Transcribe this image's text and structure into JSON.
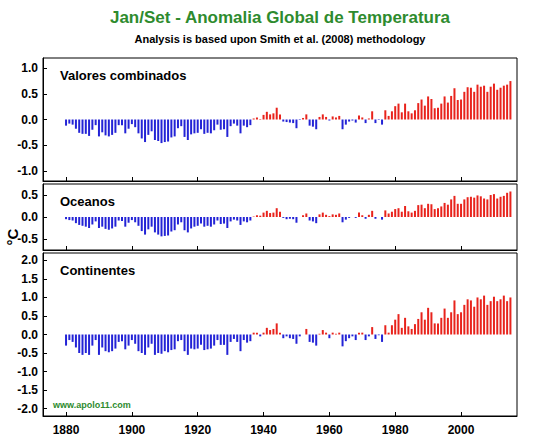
{
  "title": "Jan/Set - Anomalia Global de Temperatura",
  "subtitle": "Analysis is based upon Smith et al. (2008) methodology",
  "ylabel": "°C",
  "source": "www.apolo11.com",
  "chart_data": [
    {
      "type": "bar",
      "title": "Valores combinados",
      "x": [
        1880,
        1881,
        1882,
        1883,
        1884,
        1885,
        1886,
        1887,
        1888,
        1889,
        1890,
        1891,
        1892,
        1893,
        1894,
        1895,
        1896,
        1897,
        1898,
        1899,
        1900,
        1901,
        1902,
        1903,
        1904,
        1905,
        1906,
        1907,
        1908,
        1909,
        1910,
        1911,
        1912,
        1913,
        1914,
        1915,
        1916,
        1917,
        1918,
        1919,
        1920,
        1921,
        1922,
        1923,
        1924,
        1925,
        1926,
        1927,
        1928,
        1929,
        1930,
        1931,
        1932,
        1933,
        1934,
        1935,
        1936,
        1937,
        1938,
        1939,
        1940,
        1941,
        1942,
        1943,
        1944,
        1945,
        1946,
        1947,
        1948,
        1949,
        1950,
        1951,
        1952,
        1953,
        1954,
        1955,
        1956,
        1957,
        1958,
        1959,
        1960,
        1961,
        1962,
        1963,
        1964,
        1965,
        1966,
        1967,
        1968,
        1969,
        1970,
        1971,
        1972,
        1973,
        1974,
        1975,
        1976,
        1977,
        1978,
        1979,
        1980,
        1981,
        1982,
        1983,
        1984,
        1985,
        1986,
        1987,
        1988,
        1989,
        1990,
        1991,
        1992,
        1993,
        1994,
        1995,
        1996,
        1997,
        1998,
        1999,
        2000,
        2001,
        2002,
        2003,
        2004,
        2005,
        2006,
        2007,
        2008,
        2009,
        2010,
        2011,
        2012,
        2013,
        2014,
        2015
      ],
      "values": [
        -0.12,
        -0.08,
        -0.1,
        -0.18,
        -0.26,
        -0.28,
        -0.28,
        -0.32,
        -0.2,
        -0.11,
        -0.33,
        -0.25,
        -0.31,
        -0.33,
        -0.3,
        -0.26,
        -0.11,
        -0.11,
        -0.27,
        -0.18,
        -0.09,
        -0.15,
        -0.27,
        -0.37,
        -0.44,
        -0.3,
        -0.23,
        -0.4,
        -0.42,
        -0.46,
        -0.44,
        -0.43,
        -0.35,
        -0.33,
        -0.17,
        -0.13,
        -0.34,
        -0.4,
        -0.29,
        -0.27,
        -0.26,
        -0.19,
        -0.28,
        -0.26,
        -0.27,
        -0.21,
        -0.1,
        -0.2,
        -0.19,
        -0.34,
        -0.13,
        -0.08,
        -0.12,
        -0.27,
        -0.12,
        -0.15,
        -0.11,
        0.02,
        0.04,
        0.01,
        0.09,
        0.15,
        0.1,
        0.12,
        0.23,
        0.1,
        -0.04,
        -0.05,
        -0.06,
        -0.07,
        -0.17,
        -0.01,
        0.03,
        0.1,
        -0.12,
        -0.14,
        -0.19,
        0.05,
        0.1,
        0.05,
        -0.02,
        0.06,
        0.04,
        0.07,
        -0.19,
        -0.1,
        -0.04,
        -0.02,
        -0.06,
        0.08,
        0.04,
        -0.07,
        0.02,
        0.16,
        -0.07,
        -0.01,
        -0.1,
        0.18,
        0.07,
        0.16,
        0.26,
        0.31,
        0.14,
        0.31,
        0.16,
        0.12,
        0.18,
        0.32,
        0.39,
        0.27,
        0.45,
        0.4,
        0.22,
        0.23,
        0.31,
        0.45,
        0.33,
        0.46,
        0.61,
        0.38,
        0.39,
        0.54,
        0.63,
        0.62,
        0.54,
        0.68,
        0.64,
        0.66,
        0.54,
        0.64,
        0.7,
        0.58,
        0.62,
        0.66,
        0.68,
        0.75
      ],
      "color": {
        "positive": "#e8231c",
        "negative": "#2323d6"
      },
      "xlim": [
        1873,
        2017
      ],
      "xticks": [
        1880,
        1900,
        1920,
        1940,
        1960,
        1980,
        2000
      ],
      "ylim": [
        -1.2,
        1.2
      ],
      "yticks": [
        {
          "value": -1.0,
          "label": "-1.0"
        },
        {
          "value": -0.5,
          "label": "-0.5"
        },
        {
          "value": 0,
          "label": "0.0"
        },
        {
          "value": 0.5,
          "label": "0.5"
        },
        {
          "value": 1.0,
          "label": "1.0"
        }
      ],
      "grid": false,
      "tick_labels": "y"
    },
    {
      "type": "bar",
      "title": "Oceanos",
      "x": [
        1880,
        1881,
        1882,
        1883,
        1884,
        1885,
        1886,
        1887,
        1888,
        1889,
        1890,
        1891,
        1892,
        1893,
        1894,
        1895,
        1896,
        1897,
        1898,
        1899,
        1900,
        1901,
        1902,
        1903,
        1904,
        1905,
        1906,
        1907,
        1908,
        1909,
        1910,
        1911,
        1912,
        1913,
        1914,
        1915,
        1916,
        1917,
        1918,
        1919,
        1920,
        1921,
        1922,
        1923,
        1924,
        1925,
        1926,
        1927,
        1928,
        1929,
        1930,
        1931,
        1932,
        1933,
        1934,
        1935,
        1936,
        1937,
        1938,
        1939,
        1940,
        1941,
        1942,
        1943,
        1944,
        1945,
        1946,
        1947,
        1948,
        1949,
        1950,
        1951,
        1952,
        1953,
        1954,
        1955,
        1956,
        1957,
        1958,
        1959,
        1960,
        1961,
        1962,
        1963,
        1964,
        1965,
        1966,
        1967,
        1968,
        1969,
        1970,
        1971,
        1972,
        1973,
        1974,
        1975,
        1976,
        1977,
        1978,
        1979,
        1980,
        1981,
        1982,
        1983,
        1984,
        1985,
        1986,
        1987,
        1988,
        1989,
        1990,
        1991,
        1992,
        1993,
        1994,
        1995,
        1996,
        1997,
        1998,
        1999,
        2000,
        2001,
        2002,
        2003,
        2004,
        2005,
        2006,
        2007,
        2008,
        2009,
        2010,
        2011,
        2012,
        2013,
        2014,
        2015
      ],
      "values": [
        -0.05,
        -0.07,
        -0.08,
        -0.14,
        -0.18,
        -0.2,
        -0.22,
        -0.25,
        -0.17,
        -0.1,
        -0.25,
        -0.22,
        -0.27,
        -0.29,
        -0.26,
        -0.22,
        -0.08,
        -0.09,
        -0.22,
        -0.13,
        -0.07,
        -0.12,
        -0.2,
        -0.32,
        -0.4,
        -0.28,
        -0.22,
        -0.35,
        -0.4,
        -0.44,
        -0.43,
        -0.42,
        -0.33,
        -0.3,
        -0.17,
        -0.12,
        -0.3,
        -0.35,
        -0.26,
        -0.22,
        -0.2,
        -0.15,
        -0.22,
        -0.2,
        -0.22,
        -0.17,
        -0.08,
        -0.16,
        -0.15,
        -0.25,
        -0.1,
        -0.06,
        -0.08,
        -0.18,
        -0.1,
        -0.12,
        -0.08,
        0.01,
        0.04,
        0.03,
        0.1,
        0.14,
        0.09,
        0.1,
        0.2,
        0.12,
        -0.02,
        -0.05,
        -0.04,
        -0.05,
        -0.13,
        0.0,
        0.04,
        0.08,
        -0.08,
        -0.1,
        -0.14,
        0.06,
        0.1,
        0.05,
        0.02,
        0.06,
        0.05,
        0.08,
        -0.12,
        -0.06,
        -0.02,
        0.0,
        -0.02,
        0.1,
        0.04,
        -0.04,
        0.05,
        0.14,
        -0.04,
        0.0,
        -0.06,
        0.15,
        0.08,
        0.12,
        0.18,
        0.2,
        0.12,
        0.25,
        0.13,
        0.1,
        0.14,
        0.27,
        0.28,
        0.2,
        0.3,
        0.29,
        0.18,
        0.2,
        0.24,
        0.32,
        0.28,
        0.4,
        0.48,
        0.3,
        0.3,
        0.4,
        0.45,
        0.46,
        0.44,
        0.49,
        0.47,
        0.42,
        0.4,
        0.5,
        0.52,
        0.42,
        0.46,
        0.48,
        0.55,
        0.58
      ],
      "color": {
        "positive": "#e8231c",
        "negative": "#2323d6"
      },
      "xlim": [
        1873,
        2017
      ],
      "xticks": [
        1880,
        1900,
        1920,
        1940,
        1960,
        1980,
        2000
      ],
      "ylim": [
        -0.75,
        0.75
      ],
      "yticks": [
        {
          "value": -0.5,
          "label": "-0.5"
        },
        {
          "value": 0,
          "label": "0.0"
        },
        {
          "value": 0.5,
          "label": "0.5"
        }
      ],
      "grid": false,
      "tick_labels": "y"
    },
    {
      "type": "bar",
      "title": "Continentes",
      "x": [
        1880,
        1881,
        1882,
        1883,
        1884,
        1885,
        1886,
        1887,
        1888,
        1889,
        1890,
        1891,
        1892,
        1893,
        1894,
        1895,
        1896,
        1897,
        1898,
        1899,
        1900,
        1901,
        1902,
        1903,
        1904,
        1905,
        1906,
        1907,
        1908,
        1909,
        1910,
        1911,
        1912,
        1913,
        1914,
        1915,
        1916,
        1917,
        1918,
        1919,
        1920,
        1921,
        1922,
        1923,
        1924,
        1925,
        1926,
        1927,
        1928,
        1929,
        1930,
        1931,
        1932,
        1933,
        1934,
        1935,
        1936,
        1937,
        1938,
        1939,
        1940,
        1941,
        1942,
        1943,
        1944,
        1945,
        1946,
        1947,
        1948,
        1949,
        1950,
        1951,
        1952,
        1953,
        1954,
        1955,
        1956,
        1957,
        1958,
        1959,
        1960,
        1961,
        1962,
        1963,
        1964,
        1965,
        1966,
        1967,
        1968,
        1969,
        1970,
        1971,
        1972,
        1973,
        1974,
        1975,
        1976,
        1977,
        1978,
        1979,
        1980,
        1981,
        1982,
        1983,
        1984,
        1985,
        1986,
        1987,
        1988,
        1989,
        1990,
        1991,
        1992,
        1993,
        1994,
        1995,
        1996,
        1997,
        1998,
        1999,
        2000,
        2001,
        2002,
        2003,
        2004,
        2005,
        2006,
        2007,
        2008,
        2009,
        2010,
        2011,
        2012,
        2013,
        2014,
        2015
      ],
      "values": [
        -0.3,
        -0.15,
        -0.2,
        -0.35,
        -0.5,
        -0.55,
        -0.5,
        -0.55,
        -0.3,
        -0.15,
        -0.55,
        -0.35,
        -0.45,
        -0.48,
        -0.45,
        -0.38,
        -0.2,
        -0.18,
        -0.4,
        -0.3,
        -0.15,
        -0.25,
        -0.45,
        -0.5,
        -0.55,
        -0.35,
        -0.25,
        -0.55,
        -0.5,
        -0.52,
        -0.45,
        -0.48,
        -0.42,
        -0.4,
        -0.18,
        -0.15,
        -0.45,
        -0.55,
        -0.38,
        -0.4,
        -0.38,
        -0.28,
        -0.42,
        -0.4,
        -0.38,
        -0.3,
        -0.15,
        -0.28,
        -0.28,
        -0.55,
        -0.2,
        -0.12,
        -0.2,
        -0.45,
        -0.15,
        -0.22,
        -0.18,
        0.05,
        0.05,
        -0.05,
        0.05,
        0.18,
        0.12,
        0.15,
        0.3,
        0.05,
        -0.1,
        -0.05,
        -0.1,
        -0.12,
        -0.25,
        -0.05,
        0.0,
        0.15,
        -0.2,
        -0.22,
        -0.3,
        0.02,
        0.12,
        0.05,
        -0.1,
        0.05,
        0.02,
        0.05,
        -0.32,
        -0.18,
        -0.1,
        -0.05,
        -0.15,
        0.05,
        0.05,
        -0.15,
        -0.05,
        0.2,
        -0.12,
        -0.02,
        -0.2,
        0.25,
        0.05,
        0.25,
        0.4,
        0.55,
        0.18,
        0.45,
        0.22,
        0.15,
        0.28,
        0.42,
        0.6,
        0.4,
        0.72,
        0.6,
        0.3,
        0.3,
        0.45,
        0.7,
        0.45,
        0.6,
        0.92,
        0.55,
        0.6,
        0.8,
        0.95,
        0.92,
        0.75,
        1.0,
        0.95,
        1.05,
        0.8,
        0.9,
        1.02,
        0.9,
        0.95,
        1.05,
        0.9,
        1.0
      ],
      "color": {
        "positive": "#e8231c",
        "negative": "#2323d6"
      },
      "xlim": [
        1873,
        2017
      ],
      "xticks": [
        1880,
        1900,
        1920,
        1940,
        1960,
        1980,
        2000
      ],
      "ylim": [
        -2.2,
        2.2
      ],
      "yticks": [
        {
          "value": -2.0,
          "label": "-2.0"
        },
        {
          "value": -1.5,
          "label": "-1.5"
        },
        {
          "value": -1.0,
          "label": "-1.0"
        },
        {
          "value": -0.5,
          "label": "-0.5"
        },
        {
          "value": 0,
          "label": "0.0"
        },
        {
          "value": 0.5,
          "label": "0.5"
        },
        {
          "value": 1.0,
          "label": "1.0"
        },
        {
          "value": 1.5,
          "label": "1.5"
        },
        {
          "value": 2.0,
          "label": "2.0"
        }
      ],
      "grid": false
    }
  ]
}
